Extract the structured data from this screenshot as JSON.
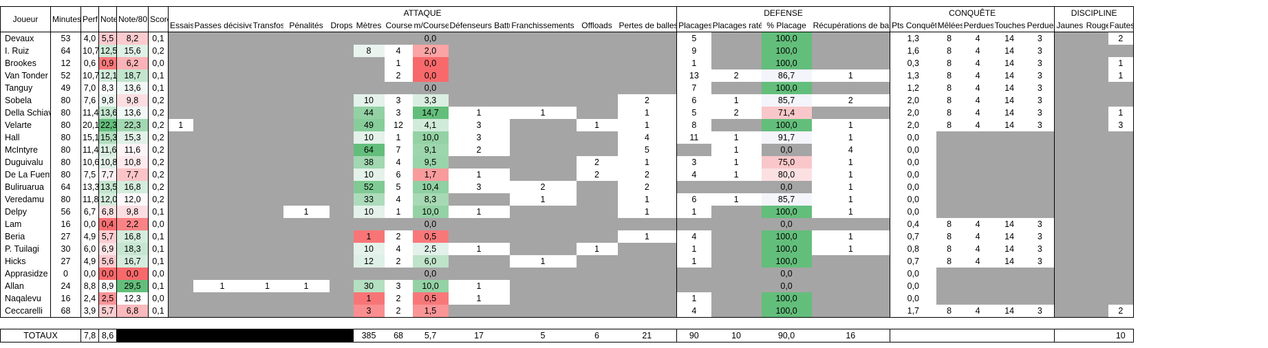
{
  "headers": {
    "joueur": "Joueur",
    "minutes": "Minutes",
    "perf": "Perf",
    "note": "Note",
    "note80": "Note/80",
    "score": "Score",
    "groups": {
      "attaque": "ATTAQUE",
      "defense": "DEFENSE",
      "conquete": "CONQUÊTE",
      "discipline": "DISCIPLINE"
    },
    "attaque": [
      "Essais",
      "Passes décisives",
      "Transfos",
      "Pénalités",
      "Drops",
      "Mètres",
      "Courses",
      "m/Course",
      "Défenseurs Battus",
      "Franchissements",
      "Offloads",
      "Pertes de balles"
    ],
    "defense": [
      "Placages",
      "Placages ratés",
      "% Placage",
      "Récupérations de balle"
    ],
    "conquete": [
      "Pts Conquête",
      "Mêlées",
      "Perdues",
      "Touches",
      "Perdues"
    ],
    "discipline": [
      "Jaunes",
      "Rouges",
      "Fautes"
    ]
  },
  "players": [
    {
      "name": "Devaux",
      "min": "53",
      "perf": "4,0",
      "note": "5,5",
      "n80": "8,2",
      "score": "0,1",
      "att": [
        "",
        "",
        "",
        "",
        "",
        "",
        "",
        "0,0",
        "",
        "",
        "",
        ""
      ],
      "def": [
        "5",
        "",
        "100,0",
        ""
      ],
      "con": [
        "1,3",
        "8",
        "4",
        "14",
        "3"
      ],
      "dis": [
        "",
        "",
        "2"
      ]
    },
    {
      "name": "I. Ruiz",
      "min": "64",
      "perf": "10,7",
      "note": "12,5",
      "n80": "15,6",
      "score": "0,2",
      "att": [
        "",
        "",
        "",
        "",
        "",
        "8",
        "4",
        "2,0",
        "",
        "",
        "",
        ""
      ],
      "def": [
        "9",
        "",
        "100,0",
        ""
      ],
      "con": [
        "1,6",
        "8",
        "4",
        "14",
        "3"
      ],
      "dis": [
        "",
        "",
        ""
      ]
    },
    {
      "name": "Brookes",
      "min": "12",
      "perf": "0,6",
      "note": "0,9",
      "n80": "6,2",
      "score": "0,0",
      "att": [
        "",
        "",
        "",
        "",
        "",
        "",
        "1",
        "0,0",
        "",
        "",
        "",
        ""
      ],
      "def": [
        "1",
        "",
        "100,0",
        ""
      ],
      "con": [
        "0,3",
        "8",
        "4",
        "14",
        "3"
      ],
      "dis": [
        "",
        "",
        "1"
      ]
    },
    {
      "name": "Van Tonder",
      "min": "52",
      "perf": "10,7",
      "note": "12,1",
      "n80": "18,7",
      "score": "0,1",
      "att": [
        "",
        "",
        "",
        "",
        "",
        "",
        "2",
        "0,0",
        "",
        "",
        "",
        ""
      ],
      "def": [
        "13",
        "2",
        "86,7",
        "1"
      ],
      "con": [
        "1,3",
        "8",
        "4",
        "14",
        "3"
      ],
      "dis": [
        "",
        "",
        "1"
      ]
    },
    {
      "name": "Tanguy",
      "min": "49",
      "perf": "7,0",
      "note": "8,3",
      "n80": "13,6",
      "score": "0,1",
      "att": [
        "",
        "",
        "",
        "",
        "",
        "",
        "",
        "0,0",
        "",
        "",
        "",
        ""
      ],
      "def": [
        "7",
        "",
        "100,0",
        ""
      ],
      "con": [
        "1,2",
        "8",
        "4",
        "14",
        "3"
      ],
      "dis": [
        "",
        "",
        ""
      ]
    },
    {
      "name": "Sobela",
      "min": "80",
      "perf": "7,6",
      "note": "9,8",
      "n80": "9,8",
      "score": "0,2",
      "att": [
        "",
        "",
        "",
        "",
        "",
        "10",
        "3",
        "3,3",
        "",
        "",
        "",
        "2"
      ],
      "def": [
        "6",
        "1",
        "85,7",
        "2"
      ],
      "con": [
        "2,0",
        "8",
        "4",
        "14",
        "3"
      ],
      "dis": [
        "",
        "",
        ""
      ]
    },
    {
      "name": "Della Schiava",
      "min": "80",
      "perf": "11,4",
      "note": "13,6",
      "n80": "13,6",
      "score": "0,2",
      "att": [
        "",
        "",
        "",
        "",
        "",
        "44",
        "3",
        "14,7",
        "1",
        "1",
        "",
        "1"
      ],
      "def": [
        "5",
        "2",
        "71,4",
        ""
      ],
      "con": [
        "2,0",
        "8",
        "4",
        "14",
        "3"
      ],
      "dis": [
        "",
        "",
        "1"
      ]
    },
    {
      "name": "Velarte",
      "min": "80",
      "perf": "20,1",
      "note": "22,3",
      "n80": "22,3",
      "score": "0,2",
      "att": [
        "1",
        "",
        "",
        "",
        "",
        "49",
        "12",
        "4,1",
        "3",
        "",
        "1",
        "1"
      ],
      "def": [
        "8",
        "",
        "100,0",
        "1"
      ],
      "con": [
        "2,0",
        "8",
        "4",
        "14",
        "3"
      ],
      "dis": [
        "",
        "",
        "3"
      ]
    },
    {
      "name": "Hall",
      "min": "80",
      "perf": "15,1",
      "note": "15,3",
      "n80": "15,3",
      "score": "0,2",
      "att": [
        "",
        "",
        "",
        "",
        "",
        "10",
        "1",
        "10,0",
        "3",
        "",
        "",
        "4"
      ],
      "def": [
        "11",
        "1",
        "91,7",
        "1"
      ],
      "con": [
        "0,0",
        "",
        "",
        "",
        ""
      ],
      "dis": [
        "",
        "",
        ""
      ]
    },
    {
      "name": "McIntyre",
      "min": "80",
      "perf": "11,4",
      "note": "11,6",
      "n80": "11,6",
      "score": "0,2",
      "att": [
        "",
        "",
        "",
        "",
        "",
        "64",
        "7",
        "9,1",
        "2",
        "",
        "",
        "5"
      ],
      "def": [
        "",
        "1",
        "0,0",
        "4"
      ],
      "con": [
        "0,0",
        "",
        "",
        "",
        ""
      ],
      "dis": [
        "",
        "",
        ""
      ]
    },
    {
      "name": "Duguivalu",
      "min": "80",
      "perf": "10,6",
      "note": "10,8",
      "n80": "10,8",
      "score": "0,2",
      "att": [
        "",
        "",
        "",
        "",
        "",
        "38",
        "4",
        "9,5",
        "",
        "",
        "2",
        "1"
      ],
      "def": [
        "3",
        "1",
        "75,0",
        "1"
      ],
      "con": [
        "0,0",
        "",
        "",
        "",
        ""
      ],
      "dis": [
        "",
        "",
        ""
      ]
    },
    {
      "name": "De La Fuente",
      "min": "80",
      "perf": "7,5",
      "note": "7,7",
      "n80": "7,7",
      "score": "0,2",
      "att": [
        "",
        "",
        "",
        "",
        "",
        "10",
        "6",
        "1,7",
        "1",
        "",
        "2",
        "2"
      ],
      "def": [
        "4",
        "1",
        "80,0",
        "1"
      ],
      "con": [
        "0,0",
        "",
        "",
        "",
        ""
      ],
      "dis": [
        "",
        "",
        ""
      ]
    },
    {
      "name": "Buliruarua",
      "min": "64",
      "perf": "13,3",
      "note": "13,5",
      "n80": "16,8",
      "score": "0,2",
      "att": [
        "",
        "",
        "",
        "",
        "",
        "52",
        "5",
        "10,4",
        "3",
        "2",
        "",
        "2"
      ],
      "def": [
        "",
        "",
        "0,0",
        "1"
      ],
      "con": [
        "0,0",
        "",
        "",
        "",
        ""
      ],
      "dis": [
        "",
        "",
        ""
      ]
    },
    {
      "name": "Veredamu",
      "min": "80",
      "perf": "11,8",
      "note": "12,0",
      "n80": "12,0",
      "score": "0,2",
      "att": [
        "",
        "",
        "",
        "",
        "",
        "33",
        "4",
        "8,3",
        "",
        "1",
        "",
        "1"
      ],
      "def": [
        "6",
        "1",
        "85,7",
        "1"
      ],
      "con": [
        "0,0",
        "",
        "",
        "",
        ""
      ],
      "dis": [
        "",
        "",
        ""
      ]
    },
    {
      "name": "Delpy",
      "min": "56",
      "perf": "6,7",
      "note": "6,8",
      "n80": "9,8",
      "score": "0,1",
      "att": [
        "",
        "",
        "",
        "1",
        "",
        "10",
        "1",
        "10,0",
        "1",
        "",
        "",
        "1"
      ],
      "def": [
        "1",
        "",
        "100,0",
        "1"
      ],
      "con": [
        "0,0",
        "",
        "",
        "",
        ""
      ],
      "dis": [
        "",
        "",
        ""
      ]
    },
    {
      "name": "Lam",
      "min": "16",
      "perf": "0,0",
      "note": "0,4",
      "n80": "2,2",
      "score": "0,0",
      "att": [
        "",
        "",
        "",
        "",
        "",
        "",
        "",
        "0,0",
        "",
        "",
        "",
        ""
      ],
      "def": [
        "",
        "",
        "0,0",
        ""
      ],
      "con": [
        "0,4",
        "8",
        "4",
        "14",
        "3"
      ],
      "dis": [
        "",
        "",
        ""
      ]
    },
    {
      "name": "Beria",
      "min": "27",
      "perf": "4,9",
      "note": "5,7",
      "n80": "16,8",
      "score": "0,1",
      "att": [
        "",
        "",
        "",
        "",
        "",
        "1",
        "2",
        "0,5",
        "",
        "",
        "",
        "1"
      ],
      "def": [
        "4",
        "",
        "100,0",
        "1"
      ],
      "con": [
        "0,7",
        "8",
        "4",
        "14",
        "3"
      ],
      "dis": [
        "",
        "",
        ""
      ]
    },
    {
      "name": "P. Tuilagi",
      "min": "30",
      "perf": "6,0",
      "note": "6,9",
      "n80": "18,3",
      "score": "0,1",
      "att": [
        "",
        "",
        "",
        "",
        "",
        "10",
        "4",
        "2,5",
        "1",
        "",
        "1",
        ""
      ],
      "def": [
        "1",
        "",
        "100,0",
        "1"
      ],
      "con": [
        "0,8",
        "8",
        "4",
        "14",
        "3"
      ],
      "dis": [
        "",
        "",
        ""
      ]
    },
    {
      "name": "Hicks",
      "min": "27",
      "perf": "4,9",
      "note": "5,6",
      "n80": "16,7",
      "score": "0,1",
      "att": [
        "",
        "",
        "",
        "",
        "",
        "12",
        "2",
        "6,0",
        "",
        "1",
        "",
        ""
      ],
      "def": [
        "1",
        "",
        "100,0",
        ""
      ],
      "con": [
        "0,7",
        "8",
        "4",
        "14",
        "3"
      ],
      "dis": [
        "",
        "",
        ""
      ]
    },
    {
      "name": "Apprasidze",
      "min": "0",
      "perf": "0,0",
      "note": "0,0",
      "n80": "0,0",
      "score": "0,0",
      "att": [
        "",
        "",
        "",
        "",
        "",
        "",
        "",
        "0,0",
        "",
        "",
        "",
        ""
      ],
      "def": [
        "",
        "",
        "0,0",
        ""
      ],
      "con": [
        "0,0",
        "",
        "",
        "",
        ""
      ],
      "dis": [
        "",
        "",
        ""
      ]
    },
    {
      "name": "Allan",
      "min": "24",
      "perf": "8,8",
      "note": "8,9",
      "n80": "29,5",
      "score": "0,1",
      "att": [
        "",
        "1",
        "1",
        "1",
        "",
        "30",
        "3",
        "10,0",
        "1",
        "",
        "",
        ""
      ],
      "def": [
        "",
        "",
        "0,0",
        ""
      ],
      "con": [
        "0,0",
        "",
        "",
        "",
        ""
      ],
      "dis": [
        "",
        "",
        ""
      ]
    },
    {
      "name": "Naqalevu",
      "min": "16",
      "perf": "2,4",
      "note": "2,5",
      "n80": "12,3",
      "score": "0,0",
      "att": [
        "",
        "",
        "",
        "",
        "",
        "1",
        "2",
        "0,5",
        "1",
        "",
        "",
        ""
      ],
      "def": [
        "1",
        "",
        "100,0",
        ""
      ],
      "con": [
        "0,0",
        "",
        "",
        "",
        ""
      ],
      "dis": [
        "",
        "",
        ""
      ]
    },
    {
      "name": "Ceccarelli",
      "min": "68",
      "perf": "3,9",
      "note": "5,7",
      "n80": "6,8",
      "score": "0,1",
      "att": [
        "",
        "",
        "",
        "",
        "",
        "3",
        "2",
        "1,5",
        "",
        "",
        "",
        ""
      ],
      "def": [
        "4",
        "",
        "100,0",
        ""
      ],
      "con": [
        "1,7",
        "8",
        "4",
        "14",
        "3"
      ],
      "dis": [
        "",
        "",
        "2"
      ]
    }
  ],
  "totals": {
    "label": "TOTAUX",
    "perf": "7,8",
    "note": "8,6",
    "metres": "385",
    "courses": "68",
    "mcourse": "5,7",
    "defenseurs": "17",
    "franchissements": "5",
    "offloads": "6",
    "pertes": "21",
    "placages": "90",
    "rates": "10",
    "pct": "90,0",
    "recup": "16",
    "fautes": "10"
  },
  "colors": {
    "grey": "#a5a5a5",
    "green_dark": "#63be7b",
    "red_dark": "#f8696b",
    "white": "#ffffff"
  }
}
